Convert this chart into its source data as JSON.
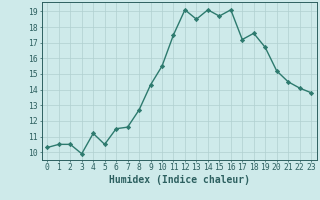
{
  "x": [
    0,
    1,
    2,
    3,
    4,
    5,
    6,
    7,
    8,
    9,
    10,
    11,
    12,
    13,
    14,
    15,
    16,
    17,
    18,
    19,
    20,
    21,
    22,
    23
  ],
  "y": [
    10.3,
    10.5,
    10.5,
    9.9,
    11.2,
    10.5,
    11.5,
    11.6,
    12.7,
    14.3,
    15.5,
    17.5,
    19.1,
    18.5,
    19.1,
    18.7,
    19.1,
    17.2,
    17.6,
    16.7,
    15.2,
    14.5,
    14.1,
    13.8
  ],
  "line_color": "#2d7a6e",
  "marker": "D",
  "markersize": 2.2,
  "linewidth": 1.0,
  "bg_color": "#ceeaea",
  "grid_color": "#b0d0d0",
  "axis_color": "#2d6060",
  "xlabel": "Humidex (Indice chaleur)",
  "xlim": [
    -0.5,
    23.5
  ],
  "ylim": [
    9.5,
    19.6
  ],
  "yticks": [
    10,
    11,
    12,
    13,
    14,
    15,
    16,
    17,
    18,
    19
  ],
  "xticks": [
    0,
    1,
    2,
    3,
    4,
    5,
    6,
    7,
    8,
    9,
    10,
    11,
    12,
    13,
    14,
    15,
    16,
    17,
    18,
    19,
    20,
    21,
    22,
    23
  ],
  "tick_label_fontsize": 5.8,
  "xlabel_fontsize": 7.0
}
